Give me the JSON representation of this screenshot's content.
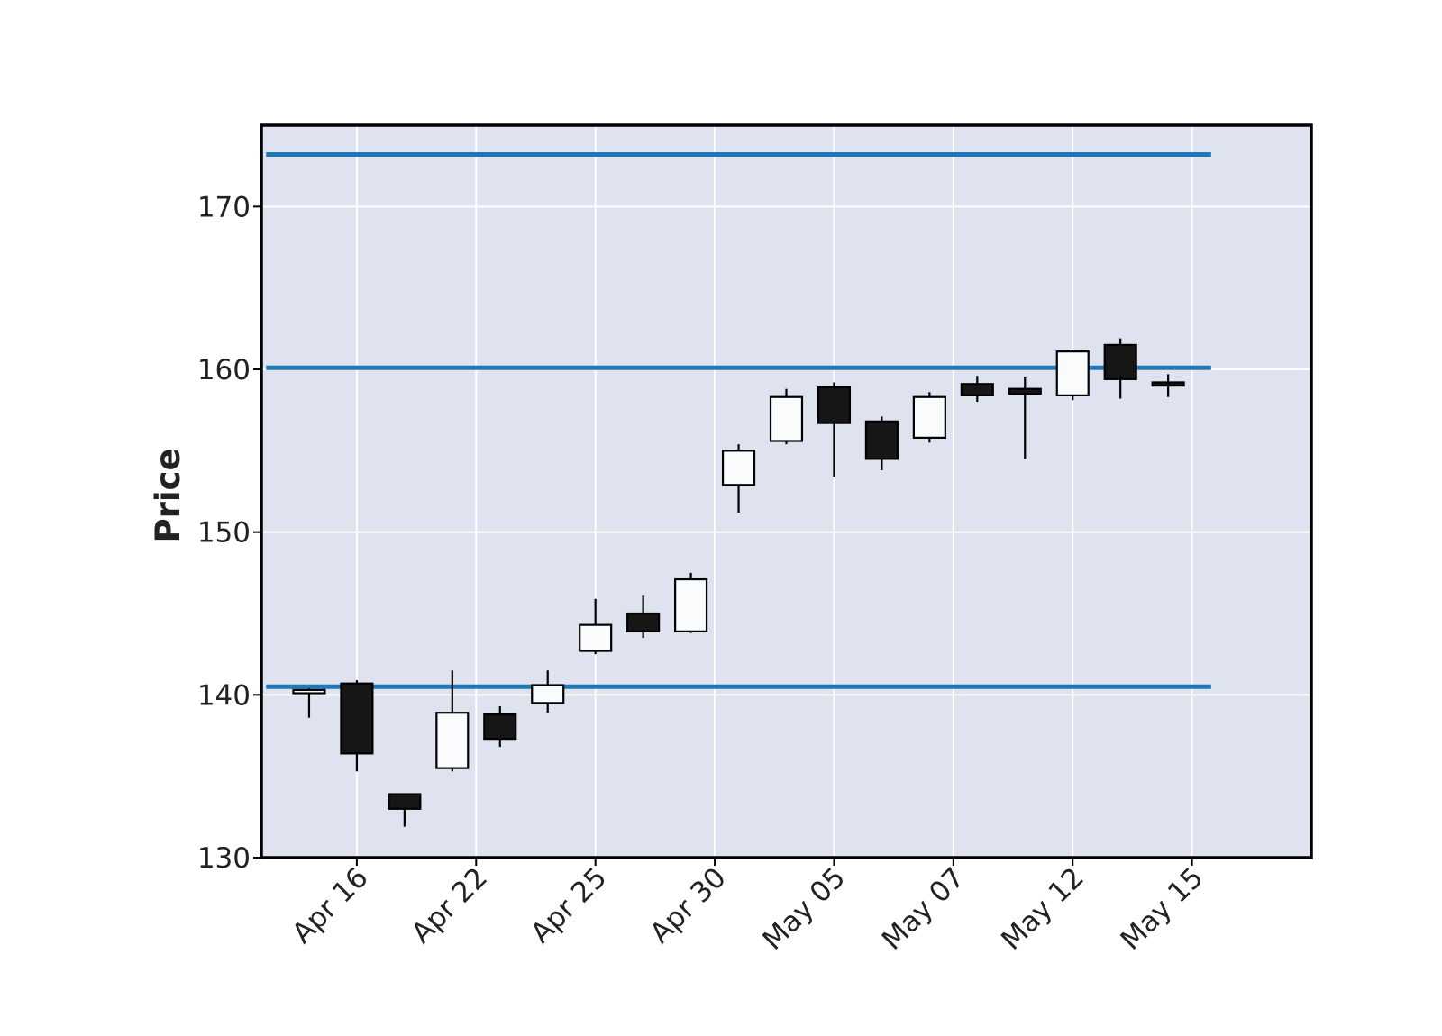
{
  "chart_data": {
    "type": "candlestick",
    "title": "",
    "xlabel": "",
    "ylabel": "Price",
    "ylim": [
      130,
      175
    ],
    "yticks": [
      130,
      140,
      150,
      160,
      170
    ],
    "xtick_labels": [
      "Apr 16",
      "Apr 22",
      "Apr 25",
      "Apr 30",
      "May 05",
      "May 07",
      "May 12",
      "May 15"
    ],
    "xtick_positions": [
      1,
      3.5,
      6,
      8.5,
      11,
      13.5,
      16,
      18.5
    ],
    "xlim": [
      -1,
      21
    ],
    "grid": true,
    "colors": {
      "background": "#dee3ef",
      "grid": "#ffffff",
      "up_fill": "#fafbfd",
      "down_fill": "#161616",
      "outline": "#000000",
      "hline": "#1f77b4"
    },
    "candles": [
      {
        "index": 0,
        "open": 140.1,
        "high": 140.4,
        "low": 138.6,
        "close": 140.3
      },
      {
        "index": 1,
        "open": 140.7,
        "high": 140.9,
        "low": 135.3,
        "close": 136.4
      },
      {
        "index": 2,
        "open": 133.9,
        "high": 133.9,
        "low": 131.9,
        "close": 133.0
      },
      {
        "index": 3,
        "open": 135.5,
        "high": 141.5,
        "low": 135.3,
        "close": 138.9
      },
      {
        "index": 4,
        "open": 138.8,
        "high": 139.3,
        "low": 136.8,
        "close": 137.3
      },
      {
        "index": 5,
        "open": 139.5,
        "high": 141.5,
        "low": 138.9,
        "close": 140.6
      },
      {
        "index": 6,
        "open": 142.7,
        "high": 145.9,
        "low": 142.5,
        "close": 144.3
      },
      {
        "index": 7,
        "open": 145.0,
        "high": 146.1,
        "low": 143.5,
        "close": 143.9
      },
      {
        "index": 8,
        "open": 143.9,
        "high": 147.5,
        "low": 143.8,
        "close": 147.1
      },
      {
        "index": 9,
        "open": 152.9,
        "high": 155.4,
        "low": 151.2,
        "close": 155.0
      },
      {
        "index": 10,
        "open": 155.6,
        "high": 158.8,
        "low": 155.4,
        "close": 158.3
      },
      {
        "index": 11,
        "open": 158.9,
        "high": 159.2,
        "low": 153.4,
        "close": 156.7
      },
      {
        "index": 12,
        "open": 156.8,
        "high": 157.1,
        "low": 153.8,
        "close": 154.5
      },
      {
        "index": 13,
        "open": 155.8,
        "high": 158.6,
        "low": 155.5,
        "close": 158.3
      },
      {
        "index": 14,
        "open": 159.1,
        "high": 159.6,
        "low": 158.0,
        "close": 158.4
      },
      {
        "index": 15,
        "open": 158.8,
        "high": 159.5,
        "low": 154.5,
        "close": 158.5
      },
      {
        "index": 16,
        "open": 158.4,
        "high": 161.2,
        "low": 158.1,
        "close": 161.1
      },
      {
        "index": 17,
        "open": 161.5,
        "high": 161.9,
        "low": 158.2,
        "close": 159.4
      },
      {
        "index": 18,
        "open": 159.2,
        "high": 159.7,
        "low": 158.3,
        "close": 159.0
      }
    ],
    "hlines": [
      173.2,
      160.1,
      140.5
    ]
  }
}
